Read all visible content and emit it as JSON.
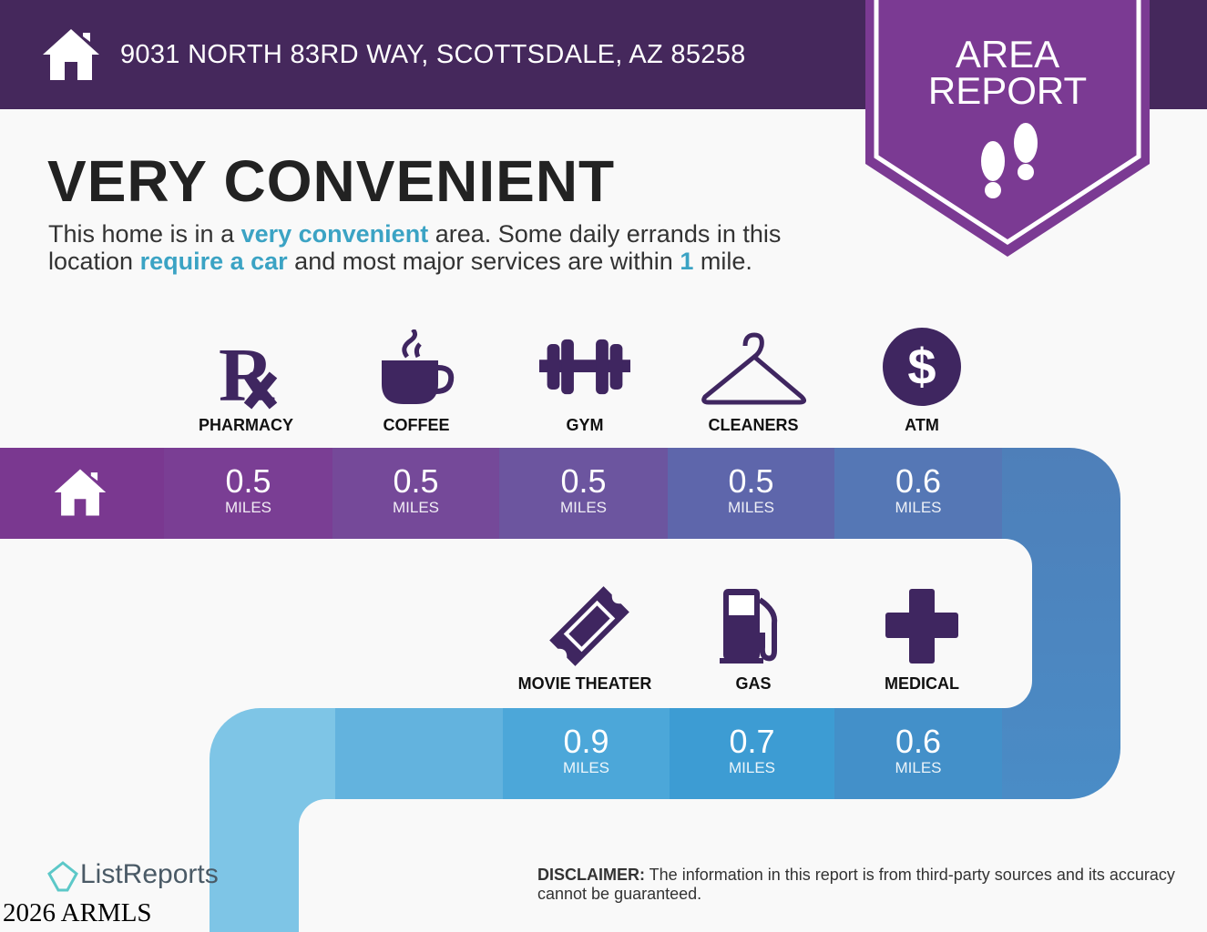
{
  "header": {
    "address": "9031 NORTH 83RD WAY, SCOTTSDALE, AZ 85258",
    "home_icon": "house-icon"
  },
  "badge": {
    "line1": "AREA",
    "line2": "REPORT",
    "icon": "footprints-icon"
  },
  "headline": "VERY CONVENIENT",
  "description": {
    "p1": "This home is in a ",
    "h1": "very convenient",
    "p2": " area. Some daily errands in this location ",
    "h2": "require a car",
    "p3": " and most major services are within ",
    "h3": "1",
    "p4": " mile."
  },
  "amenities": [
    {
      "label": "PHARMACY",
      "distance": "0.5",
      "unit": "MILES",
      "icon": "rx-icon"
    },
    {
      "label": "COFFEE",
      "distance": "0.5",
      "unit": "MILES",
      "icon": "coffee-cup-icon"
    },
    {
      "label": "GYM",
      "distance": "0.5",
      "unit": "MILES",
      "icon": "dumbbell-icon"
    },
    {
      "label": "CLEANERS",
      "distance": "0.5",
      "unit": "MILES",
      "icon": "hanger-icon"
    },
    {
      "label": "ATM",
      "distance": "0.6",
      "unit": "MILES",
      "icon": "dollar-icon"
    },
    {
      "label": "MOVIE THEATER",
      "distance": "0.9",
      "unit": "MILES",
      "icon": "ticket-icon"
    },
    {
      "label": "GAS",
      "distance": "0.7",
      "unit": "MILES",
      "icon": "gas-pump-icon"
    },
    {
      "label": "MEDICAL",
      "distance": "0.6",
      "unit": "MILES",
      "icon": "medical-cross-icon"
    }
  ],
  "colors": {
    "header": "#45285c",
    "badge": "#7b3a93",
    "icon": "#3f2660",
    "highlight": "#3ba3c4"
  },
  "footer": {
    "logo": "ListReports",
    "watermark": "2026 ARMLS",
    "disclaimer_label": "DISCLAIMER:",
    "disclaimer": " The information in this report is from third-party sources and its accuracy cannot be guaranteed."
  }
}
